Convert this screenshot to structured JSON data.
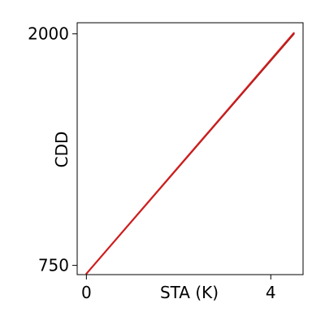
{
  "chart_data": {
    "type": "line",
    "xlabel": "STA (K)",
    "ylabel": "CDD",
    "xlim": [
      -0.2,
      4.7
    ],
    "ylim": [
      700,
      2060
    ],
    "xticks": [
      0,
      4
    ],
    "yticks": [
      750,
      2000
    ],
    "grid": false,
    "series": [
      {
        "color": "#8b1a1a",
        "x": [
          0,
          4.5
        ],
        "y": [
          705,
          2000
        ]
      },
      {
        "color": "#d41c1c",
        "x": [
          0,
          4.5
        ],
        "y": [
          705,
          2005
        ]
      }
    ]
  }
}
